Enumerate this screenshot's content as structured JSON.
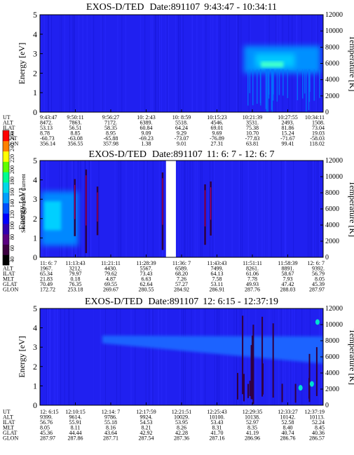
{
  "chart_data": [
    {
      "type": "heatmap",
      "title": "EXOS-D/TED",
      "date_label": "Date:891107",
      "time_range": "9:43:47 - 10:34:11",
      "ylabel": "Energy [eV]",
      "ylabel_right": "Temperature [K]",
      "ylim": [
        0,
        5
      ],
      "yticks": [
        "0",
        "1",
        "2",
        "3",
        "4",
        "5"
      ],
      "ylim_right": [
        0,
        12000
      ],
      "yticks_right": [
        "0",
        "2000",
        "4000",
        "6000",
        "8000",
        "10000",
        "12000"
      ],
      "annotation_rows": [
        {
          "label": "UT",
          "values": [
            "9:43:47",
            "9:50:11",
            "9:56:27",
            "10: 2:43",
            "10: 8:59",
            "10:15:23",
            "10:21:39",
            "10:27:55",
            "10:34:11"
          ]
        },
        {
          "label": "ALT",
          "values": [
            "8472.",
            "7863.",
            "7172.",
            "6389.",
            "5518.",
            "4546.",
            "3531.",
            "2493.",
            "1508."
          ]
        },
        {
          "label": "ILAT",
          "values": [
            "53.13",
            "56.51",
            "58.35",
            "60.84",
            "64.24",
            "69.01",
            "75.38",
            "81.86",
            "73.04"
          ]
        },
        {
          "label": "MLT",
          "values": [
            "8.78",
            "8.85",
            "8.95",
            "9.09",
            "9.29",
            "9.69",
            "10.70",
            "15.24",
            "19.03"
          ]
        },
        {
          "label": "GLAT",
          "values": [
            "-60.73",
            "-63.08",
            "-65.88",
            "-69.23",
            "-73.07",
            "-76.89",
            "-77.83",
            "-71.67",
            "-58.03"
          ]
        },
        {
          "label": "GLON",
          "values": [
            "356.14",
            "356.55",
            "357.98",
            "1.38",
            "9.01",
            "27.31",
            "63.81",
            "99.41",
            "118.02"
          ]
        }
      ]
    },
    {
      "type": "heatmap",
      "title": "EXOS-D/TED",
      "date_label": "Date:891107",
      "time_range": "11: 6: 7 - 12: 6: 7",
      "ylabel": "Energy [eV]",
      "ylabel_right": "Temperature [K]",
      "ylim": [
        0,
        5
      ],
      "yticks": [
        "0",
        "1",
        "2",
        "3",
        "4",
        "5"
      ],
      "ylim_right": [
        0,
        12000
      ],
      "yticks_right": [
        "0",
        "2000",
        "4000",
        "6000",
        "8000",
        "10000",
        "12000"
      ],
      "annotation_rows": [
        {
          "label": "UT",
          "values": [
            "11: 6: 7",
            "11:13:43",
            "11:21:11",
            "11:28:39",
            "11:36: 7",
            "11:43:43",
            "11:51:11",
            "11:58:39",
            "12: 6: 7"
          ]
        },
        {
          "label": "ALT",
          "values": [
            "1967.",
            "3212.",
            "4430.",
            "5567.",
            "6589.",
            "7499.",
            "8261.",
            "8891.",
            "9392."
          ]
        },
        {
          "label": "ILAT",
          "values": [
            "65.34",
            "79.97",
            "79.62",
            "73.43",
            "68.20",
            "64.13",
            "61.06",
            "58.67",
            "56.79"
          ]
        },
        {
          "label": "MLT",
          "values": [
            "21.83",
            "0.18",
            "4.87",
            "6.63",
            "7.26",
            "7.58",
            "7.78",
            "7.93",
            "8.05"
          ]
        },
        {
          "label": "GLAT",
          "values": [
            "70.49",
            "76.35",
            "69.55",
            "62.64",
            "57.27",
            "53.11",
            "49.93",
            "47.42",
            "45.39"
          ]
        },
        {
          "label": "GLON",
          "values": [
            "172.72",
            "253.18",
            "269.67",
            "280.55",
            "284.92",
            "286.91",
            "287.76",
            "288.03",
            "287.97"
          ]
        }
      ]
    },
    {
      "type": "heatmap",
      "title": "EXOS-D/TED",
      "date_label": "Date:891107",
      "time_range": "12: 6:15 - 12:37:19",
      "ylabel": "Energy [eV]",
      "ylabel_right": "Temperature [K]",
      "ylim": [
        0,
        5
      ],
      "yticks": [
        "0",
        "1",
        "2",
        "3",
        "4",
        "5"
      ],
      "ylim_right": [
        0,
        12000
      ],
      "yticks_right": [
        "0",
        "2000",
        "4000",
        "6000",
        "8000",
        "10000",
        "12000"
      ],
      "annotation_rows": [
        {
          "label": "UT",
          "values": [
            "12: 6:15",
            "12:10:15",
            "12:14: 7",
            "12:17:59",
            "12:21:51",
            "12:25:43",
            "12:29:35",
            "12:33:27",
            "12:37:19"
          ]
        },
        {
          "label": "ALT",
          "values": [
            "9399.",
            "9614.",
            "9786.",
            "9924.",
            "10029.",
            "10100.",
            "10138.",
            "10142.",
            "10113."
          ]
        },
        {
          "label": "ILAT",
          "values": [
            "56.76",
            "55.91",
            "55.18",
            "54.53",
            "53.95",
            "53.43",
            "52.97",
            "52.58",
            "52.24"
          ]
        },
        {
          "label": "MLT",
          "values": [
            "8.05",
            "8.11",
            "8.16",
            "8.21",
            "8.26",
            "8.31",
            "8.35",
            "8.40",
            "8.45"
          ]
        },
        {
          "label": "GLAT",
          "values": [
            "45.36",
            "44.44",
            "43.64",
            "42.92",
            "42.28",
            "41.70",
            "41.19",
            "40.74",
            "40.36"
          ]
        },
        {
          "label": "GLON",
          "values": [
            "287.97",
            "287.86",
            "287.71",
            "287.54",
            "287.36",
            "287.16",
            "286.96",
            "286.76",
            "286.57"
          ]
        }
      ]
    }
  ],
  "colorbar": {
    "label": "Second Harmonic Current",
    "ticks": [
      "40",
      "60",
      "80",
      "100",
      "120",
      "140",
      "160",
      "180",
      "200",
      "220",
      "240",
      "250"
    ],
    "colors": [
      "#000000",
      "#3c0040",
      "#5a0080",
      "#3000b0",
      "#0000ff",
      "#0050ff",
      "#00a0ff",
      "#00d8e8",
      "#00ff90",
      "#60ff00",
      "#ffff00",
      "#ff8000",
      "#ff0000"
    ]
  },
  "colors": {
    "background_field": "#2020f0",
    "enhanced_band": "#00a8ff",
    "gap": "#ffffff"
  }
}
